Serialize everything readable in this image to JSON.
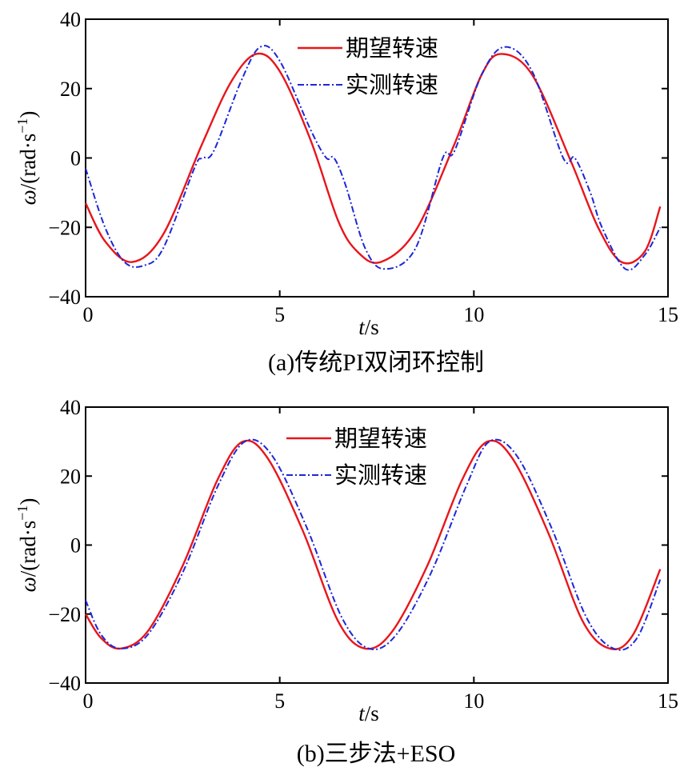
{
  "chart_data": [
    {
      "type": "line",
      "caption": "(a)传统PI双闭环控制",
      "xlabel_var": "t",
      "xlabel_unit": "/s",
      "ylabel_var": "ω",
      "ylabel_unit": "/(rad·s",
      "ylabel_exp": "−1",
      "ylabel_close": ")",
      "xlim": [
        0,
        15
      ],
      "ylim": [
        -40,
        40
      ],
      "xticks": [
        0,
        5,
        10,
        15
      ],
      "yticks": [
        -40,
        -20,
        0,
        20,
        40
      ],
      "ytick_labels": [
        "−40",
        "−20",
        "0",
        "20",
        "40"
      ],
      "legend_position": "top-right",
      "series": [
        {
          "name": "期望转速",
          "color": "#e8161b",
          "style": "solid",
          "x": [
            0,
            0.5,
            1.2,
            2.0,
            3.0,
            3.75,
            4.4,
            5.0,
            5.8,
            6.5,
            7.0,
            7.6,
            8.5,
            9.5,
            10.2,
            10.7,
            11.5,
            12.5,
            13.2,
            13.8,
            14.4,
            14.8
          ],
          "y": [
            -13,
            -24,
            -30,
            -22,
            4,
            22,
            30,
            25,
            5,
            -18,
            -27,
            -30,
            -21,
            4,
            24,
            30,
            24,
            -1,
            -20,
            -30,
            -27,
            -14
          ]
        },
        {
          "name": "实测转速",
          "color": "#1e27d6",
          "style": "dashdot",
          "x": [
            0,
            0.5,
            1.0,
            1.5,
            2.0,
            2.8,
            3.0,
            3.3,
            4.0,
            4.5,
            5.0,
            5.8,
            6.2,
            6.4,
            6.7,
            7.2,
            7.7,
            8.5,
            9.2,
            9.5,
            10.2,
            10.8,
            11.5,
            12.3,
            12.6,
            13.0,
            13.3,
            13.9,
            14.4,
            14.8
          ],
          "y": [
            -3,
            -20,
            -30,
            -31,
            -26,
            -3,
            0,
            2,
            22,
            32,
            28,
            8,
            0,
            0,
            -8,
            -26,
            -32,
            -26,
            0,
            2,
            24,
            32,
            25,
            0,
            0,
            -10,
            -20,
            -32,
            -28,
            -20
          ]
        }
      ]
    },
    {
      "type": "line",
      "caption": "(b)三步法+ESO",
      "xlabel_var": "t",
      "xlabel_unit": "/s",
      "ylabel_var": "ω",
      "ylabel_unit": "/(rad·s",
      "ylabel_exp": "−1",
      "ylabel_close": ")",
      "xlim": [
        0,
        15
      ],
      "ylim": [
        -40,
        40
      ],
      "xticks": [
        0,
        5,
        10,
        15
      ],
      "yticks": [
        -40,
        -20,
        0,
        20,
        40
      ],
      "ytick_labels": [
        "−40",
        "−20",
        "0",
        "20",
        "40"
      ],
      "legend_position": "top-right",
      "series": [
        {
          "name": "期望转速",
          "color": "#e8161b",
          "style": "solid",
          "x": [
            0,
            0.4,
            0.9,
            1.6,
            2.5,
            3.4,
            4.05,
            4.7,
            5.6,
            6.5,
            7.2,
            7.9,
            8.8,
            9.7,
            10.35,
            11.0,
            11.9,
            12.8,
            13.5,
            14.1,
            14.8
          ],
          "y": [
            -20,
            -27,
            -30,
            -25,
            -6,
            19,
            30,
            25,
            4,
            -22,
            -30,
            -25,
            -6,
            19,
            30,
            25,
            4,
            -22,
            -30,
            -26,
            -7
          ]
        },
        {
          "name": "实测转速",
          "color": "#1e27d6",
          "style": "dashdot",
          "x": [
            0,
            0.4,
            0.9,
            1.6,
            2.5,
            3.4,
            4.1,
            4.8,
            5.7,
            6.6,
            7.3,
            8.0,
            8.9,
            9.8,
            10.4,
            11.1,
            12.0,
            12.9,
            13.6,
            14.2,
            14.8
          ],
          "y": [
            -16,
            -26,
            -30,
            -26,
            -8,
            17,
            30,
            26,
            5,
            -21,
            -30,
            -26,
            -8,
            17,
            30,
            26,
            5,
            -21,
            -30,
            -27,
            -10
          ]
        }
      ]
    }
  ]
}
